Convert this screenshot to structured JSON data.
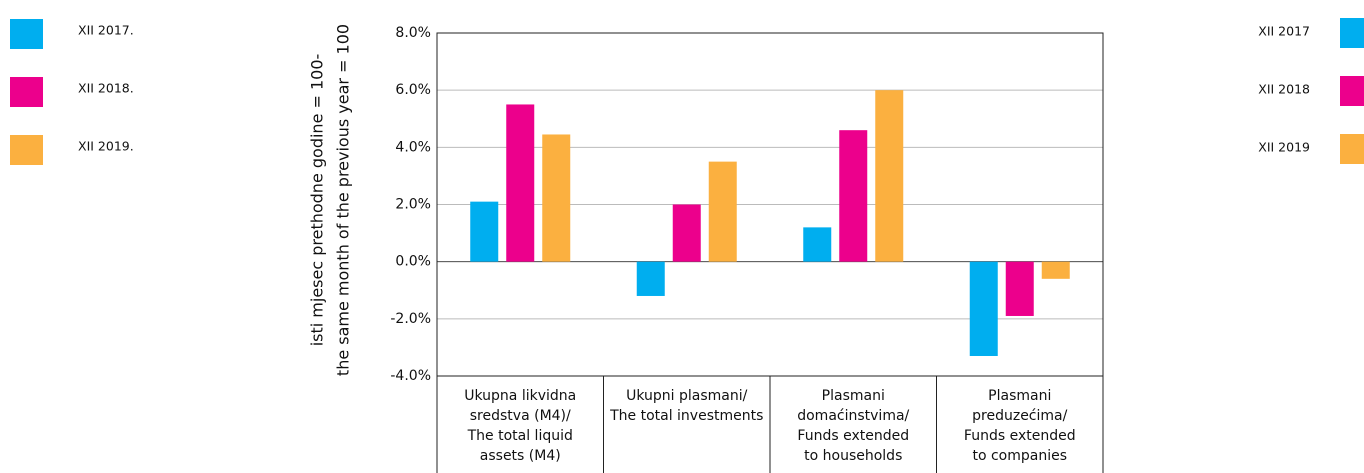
{
  "chart_data": {
    "type": "bar",
    "y_axis_label": [
      "isti mjesec prethodne godine  = 100-",
      "the same month of the previous year = 100"
    ],
    "categories": [
      [
        "Ukupna likvidna",
        "sredstva (M4)/",
        "The total liquid",
        "assets (M4)"
      ],
      [
        "Ukupni plasmani/",
        "The total investments"
      ],
      [
        "Plasmani",
        "domaćinstvima/",
        "Funds extended",
        "to households"
      ],
      [
        "Plasmani",
        "preduzećima/",
        "Funds extended",
        "to companies"
      ]
    ],
    "series": [
      {
        "name": "XII 2017.",
        "color": "#00aeef",
        "values": [
          2.1,
          -1.2,
          1.2,
          -3.3
        ]
      },
      {
        "name": "XII 2018.",
        "color": "#ec008c",
        "values": [
          5.5,
          2.0,
          4.6,
          -1.9
        ]
      },
      {
        "name": "XII 2019.",
        "color": "#fbb040",
        "values": [
          4.45,
          3.5,
          6.0,
          -0.6
        ]
      }
    ],
    "legend_right_labels": [
      "XII 2017",
      "XII 2018",
      "XII 2019"
    ],
    "ylim": [
      -4,
      8
    ],
    "yticks": [
      {
        "value": -4,
        "label": "-4.0%"
      },
      {
        "value": -2,
        "label": "-2.0%"
      },
      {
        "value": 0,
        "label": "0.0%"
      },
      {
        "value": 2,
        "label": "2.0%"
      },
      {
        "value": 4,
        "label": "4.0%"
      },
      {
        "value": 6,
        "label": "6.0%"
      },
      {
        "value": 8,
        "label": "8.0%"
      }
    ],
    "grid": true
  }
}
